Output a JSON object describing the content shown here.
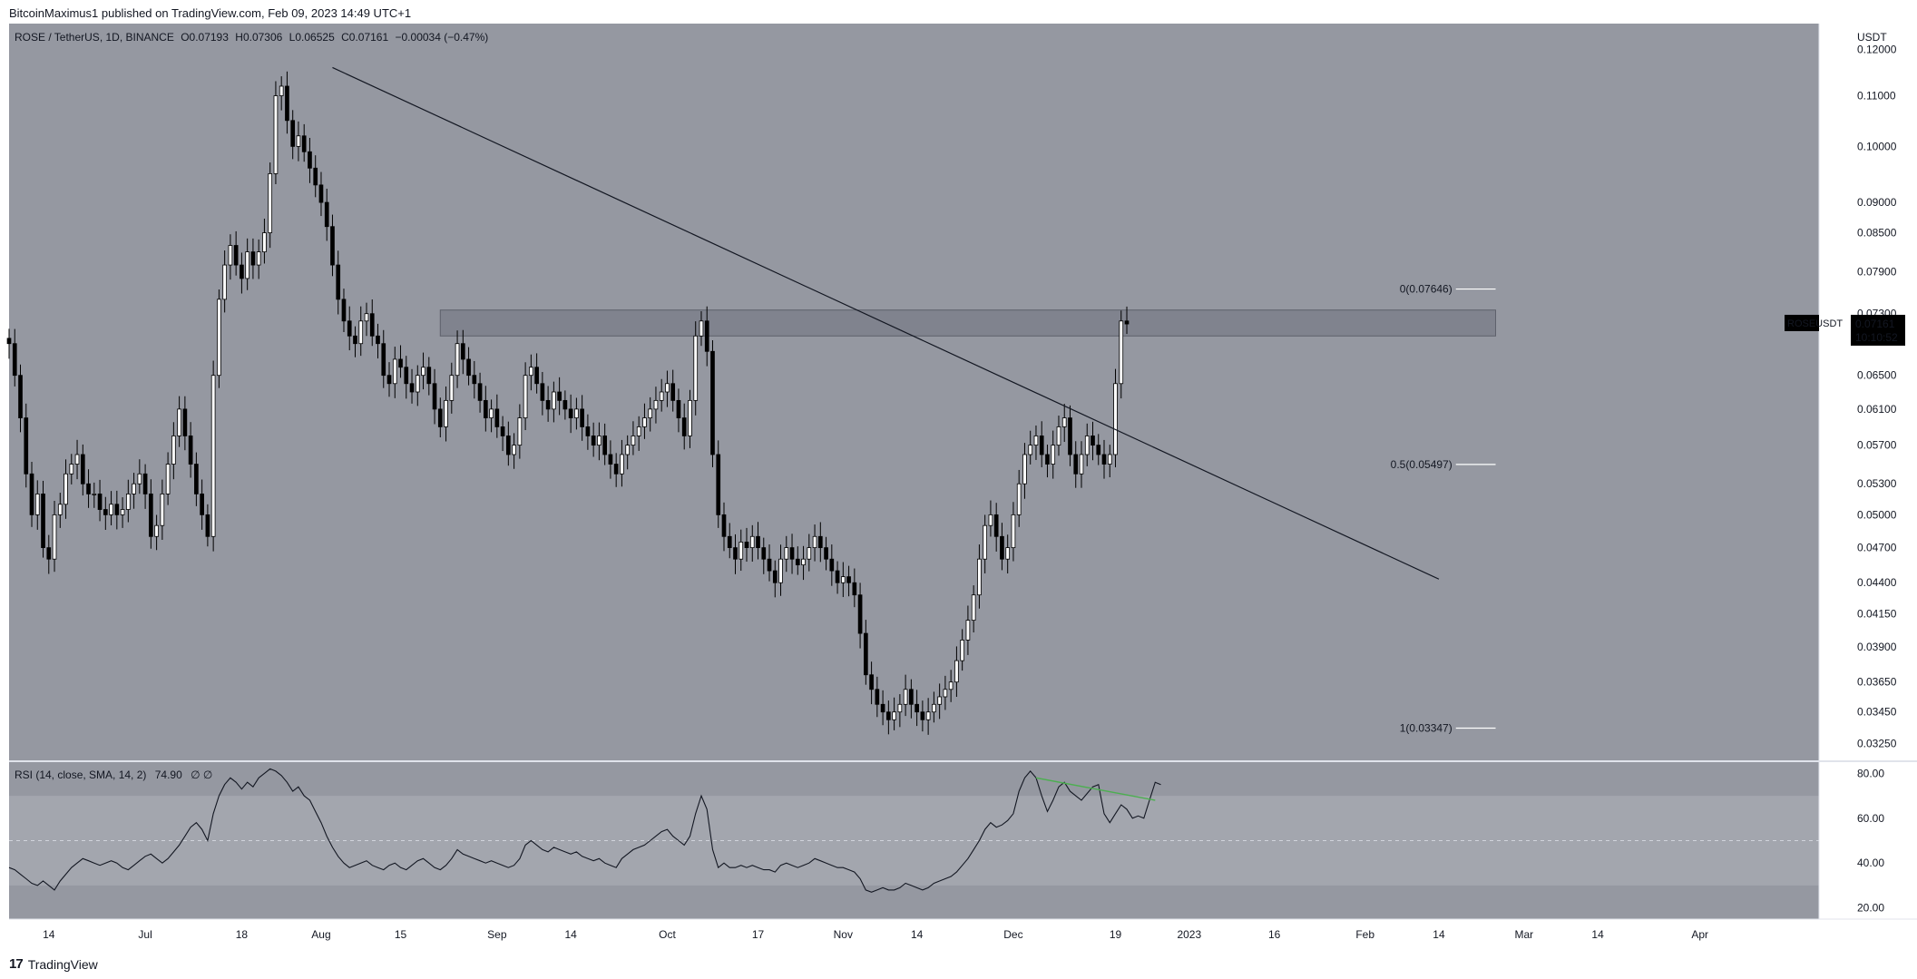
{
  "header": {
    "publisher_text": "BitcoinMaximus1 published on TradingView.com, Feb 09, 2023 14:49 UTC+1"
  },
  "footer": {
    "logo_mark": "17",
    "logo_text": "TradingView"
  },
  "colors": {
    "pane_bg": "#9598a1",
    "rsi_band": "#a3a6ae",
    "up_body": "#ffffff",
    "down_body": "#000000",
    "wick": "#000000",
    "zone": "#787b86",
    "price_tag_bg": "#000000",
    "divergence": "#4caf50"
  },
  "chart_data": [
    {
      "type": "candlestick",
      "legend": {
        "symbol": "ROSE / TetherUS, 1D, BINANCE",
        "o_label": "O",
        "o_value": "0.07193",
        "h_label": "H",
        "h_value": "0.07306",
        "l_label": "L",
        "l_value": "0.06525",
        "c_label": "C",
        "c_value": "0.07161",
        "change": "−0.00034 (−0.47%)"
      },
      "y_axis": {
        "unit": "USDT",
        "scale": "log",
        "ticks": [
          "0.12000",
          "0.11000",
          "0.10000",
          "0.09000",
          "0.08500",
          "0.07900",
          "0.07300",
          "0.06500",
          "0.06100",
          "0.05700",
          "0.05300",
          "0.05000",
          "0.04700",
          "0.04400",
          "0.04150",
          "0.03900",
          "0.03650",
          "0.03450",
          "0.03250"
        ],
        "range": [
          0.0315,
          0.126
        ]
      },
      "x_axis": {
        "ticks": [
          {
            "label": "14",
            "date": "2022-06-14"
          },
          {
            "label": "Jul",
            "date": "2022-07-01"
          },
          {
            "label": "18",
            "date": "2022-07-18"
          },
          {
            "label": "Aug",
            "date": "2022-08-01"
          },
          {
            "label": "15",
            "date": "2022-08-15"
          },
          {
            "label": "Sep",
            "date": "2022-09-01"
          },
          {
            "label": "14",
            "date": "2022-09-14"
          },
          {
            "label": "Oct",
            "date": "2022-10-01"
          },
          {
            "label": "17",
            "date": "2022-10-17"
          },
          {
            "label": "Nov",
            "date": "2022-11-01"
          },
          {
            "label": "14",
            "date": "2022-11-14"
          },
          {
            "label": "Dec",
            "date": "2022-12-01"
          },
          {
            "label": "19",
            "date": "2022-12-19"
          },
          {
            "label": "2023",
            "date": "2023-01-01"
          },
          {
            "label": "16",
            "date": "2023-01-16"
          },
          {
            "label": "Feb",
            "date": "2023-02-01"
          },
          {
            "label": "14",
            "date": "2023-02-14"
          },
          {
            "label": "Mar",
            "date": "2023-03-01"
          },
          {
            "label": "14",
            "date": "2023-03-14"
          },
          {
            "label": "Apr",
            "date": "2023-04-01"
          }
        ],
        "range": [
          "2022-06-07",
          "2023-04-22"
        ]
      },
      "last_price": {
        "symbol": "ROSEUSDT",
        "value": "0.07161",
        "countdown": "10:10:52"
      },
      "resistance_zone": {
        "low": 0.07,
        "high": 0.0735,
        "from": "2022-08-22",
        "to": "2023-02-24"
      },
      "trendline": {
        "from": {
          "date": "2022-08-03",
          "price": 0.116
        },
        "to": {
          "date": "2023-02-14",
          "price": 0.0443
        }
      },
      "fib_levels": [
        {
          "label": "0(0.07646)",
          "price": 0.07646
        },
        {
          "label": "0.5(0.05497)",
          "price": 0.05497
        },
        {
          "label": "1(0.03347)",
          "price": 0.03347
        }
      ],
      "fib_from": "2023-02-17",
      "fib_to": "2023-02-24",
      "candles_start": "2022-06-07",
      "closes": [
        0.069,
        0.065,
        0.06,
        0.054,
        0.05,
        0.052,
        0.047,
        0.046,
        0.05,
        0.051,
        0.054,
        0.055,
        0.056,
        0.053,
        0.052,
        0.052,
        0.0505,
        0.05,
        0.051,
        0.05,
        0.0505,
        0.052,
        0.053,
        0.054,
        0.052,
        0.048,
        0.049,
        0.052,
        0.055,
        0.058,
        0.061,
        0.058,
        0.055,
        0.052,
        0.05,
        0.048,
        0.065,
        0.075,
        0.08,
        0.083,
        0.08,
        0.078,
        0.082,
        0.08,
        0.082,
        0.085,
        0.095,
        0.11,
        0.112,
        0.105,
        0.1,
        0.102,
        0.099,
        0.096,
        0.093,
        0.09,
        0.086,
        0.08,
        0.075,
        0.072,
        0.07,
        0.069,
        0.072,
        0.073,
        0.07,
        0.069,
        0.065,
        0.064,
        0.067,
        0.066,
        0.064,
        0.063,
        0.065,
        0.066,
        0.064,
        0.061,
        0.059,
        0.062,
        0.065,
        0.069,
        0.067,
        0.065,
        0.064,
        0.062,
        0.06,
        0.061,
        0.059,
        0.058,
        0.056,
        0.057,
        0.06,
        0.065,
        0.066,
        0.064,
        0.062,
        0.061,
        0.063,
        0.062,
        0.061,
        0.06,
        0.061,
        0.059,
        0.058,
        0.057,
        0.058,
        0.056,
        0.055,
        0.054,
        0.056,
        0.057,
        0.058,
        0.059,
        0.06,
        0.061,
        0.062,
        0.063,
        0.064,
        0.062,
        0.06,
        0.058,
        0.062,
        0.07,
        0.072,
        0.068,
        0.056,
        0.05,
        0.048,
        0.047,
        0.046,
        0.0475,
        0.047,
        0.048,
        0.047,
        0.046,
        0.045,
        0.044,
        0.046,
        0.047,
        0.046,
        0.0455,
        0.046,
        0.047,
        0.048,
        0.047,
        0.046,
        0.045,
        0.044,
        0.0445,
        0.044,
        0.043,
        0.04,
        0.037,
        0.036,
        0.035,
        0.0345,
        0.034,
        0.0345,
        0.035,
        0.036,
        0.035,
        0.0345,
        0.034,
        0.0345,
        0.035,
        0.0355,
        0.036,
        0.0365,
        0.038,
        0.0395,
        0.041,
        0.043,
        0.046,
        0.049,
        0.05,
        0.048,
        0.046,
        0.047,
        0.05,
        0.053,
        0.056,
        0.057,
        0.058,
        0.056,
        0.055,
        0.057,
        0.059,
        0.06,
        0.056,
        0.054,
        0.056,
        0.058,
        0.057,
        0.056,
        0.055,
        0.056,
        0.064,
        0.072,
        0.0716
      ]
    },
    {
      "type": "line",
      "legend": {
        "title": "RSI (14, close, SMA, 14, 2)",
        "value": "74.90",
        "extra": "∅ ∅"
      },
      "y_axis": {
        "ticks": [
          "80.00",
          "60.00",
          "40.00",
          "20.00"
        ],
        "range": [
          15,
          85
        ]
      },
      "band": [
        30,
        70
      ],
      "midline": 50,
      "values": [
        38,
        37,
        35,
        33,
        31,
        30,
        32,
        30,
        28,
        32,
        35,
        38,
        40,
        42,
        41,
        40,
        39,
        40,
        41,
        40,
        38,
        37,
        39,
        41,
        43,
        44,
        42,
        40,
        42,
        45,
        48,
        52,
        56,
        58,
        55,
        50,
        62,
        70,
        75,
        78,
        76,
        73,
        76,
        74,
        78,
        80,
        82,
        81,
        79,
        76,
        72,
        74,
        70,
        68,
        63,
        58,
        52,
        47,
        43,
        40,
        38,
        39,
        40,
        41,
        39,
        38,
        37,
        39,
        40,
        38,
        37,
        39,
        41,
        42,
        40,
        38,
        37,
        39,
        42,
        46,
        44,
        43,
        42,
        41,
        40,
        41,
        40,
        39,
        38,
        39,
        42,
        48,
        50,
        48,
        46,
        45,
        47,
        46,
        45,
        44,
        45,
        43,
        42,
        41,
        42,
        40,
        39,
        38,
        42,
        44,
        46,
        47,
        48,
        50,
        52,
        54,
        55,
        52,
        50,
        48,
        52,
        62,
        70,
        64,
        46,
        38,
        40,
        38,
        38,
        39,
        38,
        39,
        38,
        37,
        37,
        36,
        39,
        40,
        39,
        38,
        39,
        40,
        42,
        41,
        40,
        39,
        38,
        38,
        37,
        36,
        33,
        28,
        27,
        28,
        29,
        28,
        28,
        29,
        31,
        30,
        29,
        28,
        29,
        31,
        32,
        33,
        34,
        36,
        39,
        42,
        46,
        50,
        55,
        58,
        56,
        57,
        59,
        62,
        72,
        78,
        81,
        78,
        70,
        63,
        68,
        74,
        76,
        72,
        70,
        68,
        71,
        74,
        75,
        62,
        58,
        62,
        66,
        64,
        60,
        61,
        60,
        68,
        76,
        75
      ]
    }
  ]
}
